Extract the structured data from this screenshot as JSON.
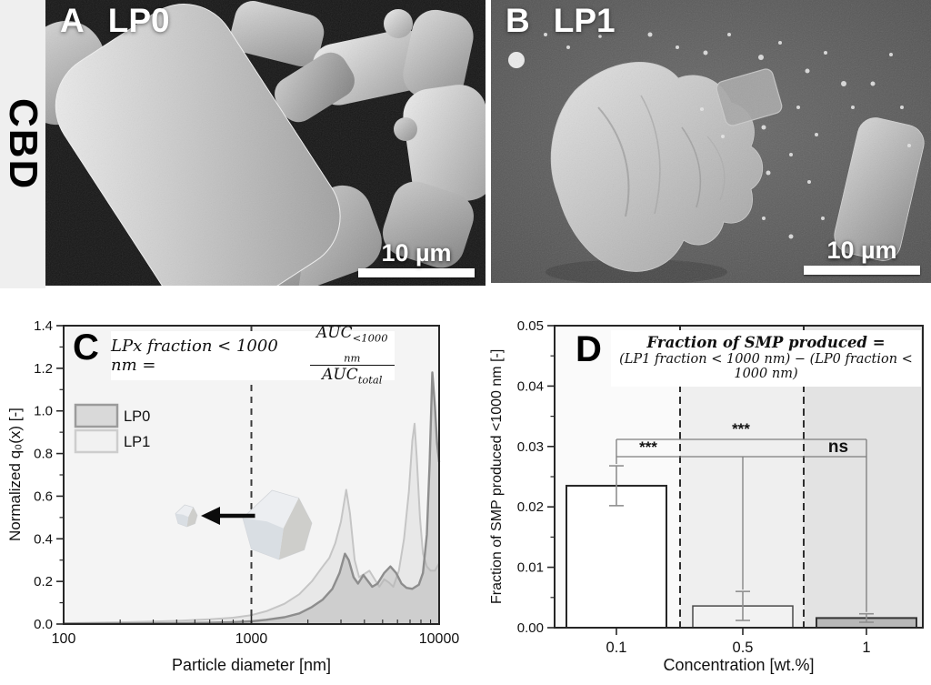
{
  "figure": {
    "row_label": "CBD",
    "panel_a": {
      "letter": "A",
      "sample": "LP0",
      "scale_bar": "10 µm"
    },
    "panel_b": {
      "letter": "B",
      "sample": "LP1",
      "scale_bar": "10 µm"
    }
  },
  "chart_data": [
    {
      "type": "area",
      "panel": "C",
      "xlabel": "Particle diameter [nm]",
      "ylabel": "Normalized q₀(x) [-]",
      "xscale": "log",
      "xlim": [
        100,
        10000
      ],
      "ylim": [
        0,
        1.4
      ],
      "xticks": [
        100,
        1000,
        10000
      ],
      "yticks": [
        "0.0",
        "0.2",
        "0.4",
        "0.6",
        "0.8",
        "1.0",
        "1.2",
        "1.4"
      ],
      "grid": false,
      "legend": {
        "position": "upper left",
        "entries": [
          "LP0",
          "LP1"
        ]
      },
      "dashed_marker_x": 1000,
      "formula": {
        "lhs": "LPx fraction < 1000 nm =",
        "num_base": "AUC",
        "num_sub": "<1000 nm",
        "den_base": "AUC",
        "den_sub": "total"
      },
      "series": [
        {
          "name": "LP0",
          "stroke": "#8d8d8d",
          "fill": "rgba(180,180,180,0.5)",
          "points": [
            [
              100,
              0.002
            ],
            [
              200,
              0.003
            ],
            [
              400,
              0.004
            ],
            [
              600,
              0.006
            ],
            [
              800,
              0.009
            ],
            [
              1000,
              0.013
            ],
            [
              1200,
              0.02
            ],
            [
              1500,
              0.032
            ],
            [
              1800,
              0.05
            ],
            [
              2100,
              0.08
            ],
            [
              2400,
              0.115
            ],
            [
              2700,
              0.165
            ],
            [
              2950,
              0.24
            ],
            [
              3150,
              0.33
            ],
            [
              3300,
              0.3
            ],
            [
              3500,
              0.22
            ],
            [
              3700,
              0.19
            ],
            [
              3950,
              0.23
            ],
            [
              4150,
              0.205
            ],
            [
              4400,
              0.175
            ],
            [
              4700,
              0.19
            ],
            [
              5100,
              0.24
            ],
            [
              5500,
              0.27
            ],
            [
              5900,
              0.24
            ],
            [
              6300,
              0.19
            ],
            [
              6700,
              0.17
            ],
            [
              7200,
              0.165
            ],
            [
              7800,
              0.185
            ],
            [
              8200,
              0.24
            ],
            [
              8600,
              0.42
            ],
            [
              8900,
              0.75
            ],
            [
              9200,
              1.18
            ],
            [
              9500,
              1.02
            ],
            [
              9750,
              0.85
            ],
            [
              10000,
              0.76
            ]
          ]
        },
        {
          "name": "LP1",
          "stroke": "#c5c5c5",
          "fill": "rgba(228,228,228,0.75)",
          "points": [
            [
              100,
              0.004
            ],
            [
              200,
              0.008
            ],
            [
              400,
              0.015
            ],
            [
              600,
              0.022
            ],
            [
              800,
              0.03
            ],
            [
              1000,
              0.042
            ],
            [
              1200,
              0.06
            ],
            [
              1500,
              0.095
            ],
            [
              1800,
              0.14
            ],
            [
              2100,
              0.2
            ],
            [
              2400,
              0.27
            ],
            [
              2600,
              0.31
            ],
            [
              2800,
              0.38
            ],
            [
              3000,
              0.48
            ],
            [
              3200,
              0.63
            ],
            [
              3350,
              0.52
            ],
            [
              3550,
              0.3
            ],
            [
              3750,
              0.22
            ],
            [
              4000,
              0.235
            ],
            [
              4250,
              0.25
            ],
            [
              4500,
              0.215
            ],
            [
              4800,
              0.175
            ],
            [
              5100,
              0.21
            ],
            [
              5400,
              0.195
            ],
            [
              5700,
              0.175
            ],
            [
              6100,
              0.25
            ],
            [
              6500,
              0.4
            ],
            [
              6900,
              0.62
            ],
            [
              7200,
              0.86
            ],
            [
              7400,
              0.94
            ],
            [
              7600,
              0.78
            ],
            [
              7900,
              0.5
            ],
            [
              8200,
              0.33
            ],
            [
              8600,
              0.27
            ],
            [
              9000,
              0.25
            ],
            [
              9500,
              0.25
            ],
            [
              10000,
              0.285
            ]
          ]
        }
      ]
    },
    {
      "type": "bar",
      "panel": "D",
      "xlabel": "Concentration [wt.%]",
      "ylabel": "Fraction of SMP produced <1000 nm [-]",
      "categories": [
        "0.1",
        "0.5",
        "1"
      ],
      "values": [
        0.0235,
        0.0036,
        0.0016
      ],
      "errors": [
        0.0033,
        0.0024,
        0.0007
      ],
      "ylim": [
        0,
        0.05
      ],
      "yticks": [
        "0.00",
        "0.01",
        "0.02",
        "0.03",
        "0.04",
        "0.05"
      ],
      "bar_fills": [
        "#ffffff",
        "#f2f2f2",
        "#b7b7b7"
      ],
      "band_fills": [
        "#fafafa",
        "#efefef",
        "#e3e3e3"
      ],
      "formula_line1": "Fraction of SMP produced =",
      "formula_line2": "(LP1 fraction < 1000 nm) − (LP0 fraction < 1000 nm)",
      "significance": [
        {
          "label": "***",
          "pair": "0.1 vs 1"
        },
        {
          "label": "***",
          "pair": "0.1 vs 0.5"
        },
        {
          "label": "ns",
          "pair": "0.5 vs 1"
        }
      ]
    }
  ]
}
